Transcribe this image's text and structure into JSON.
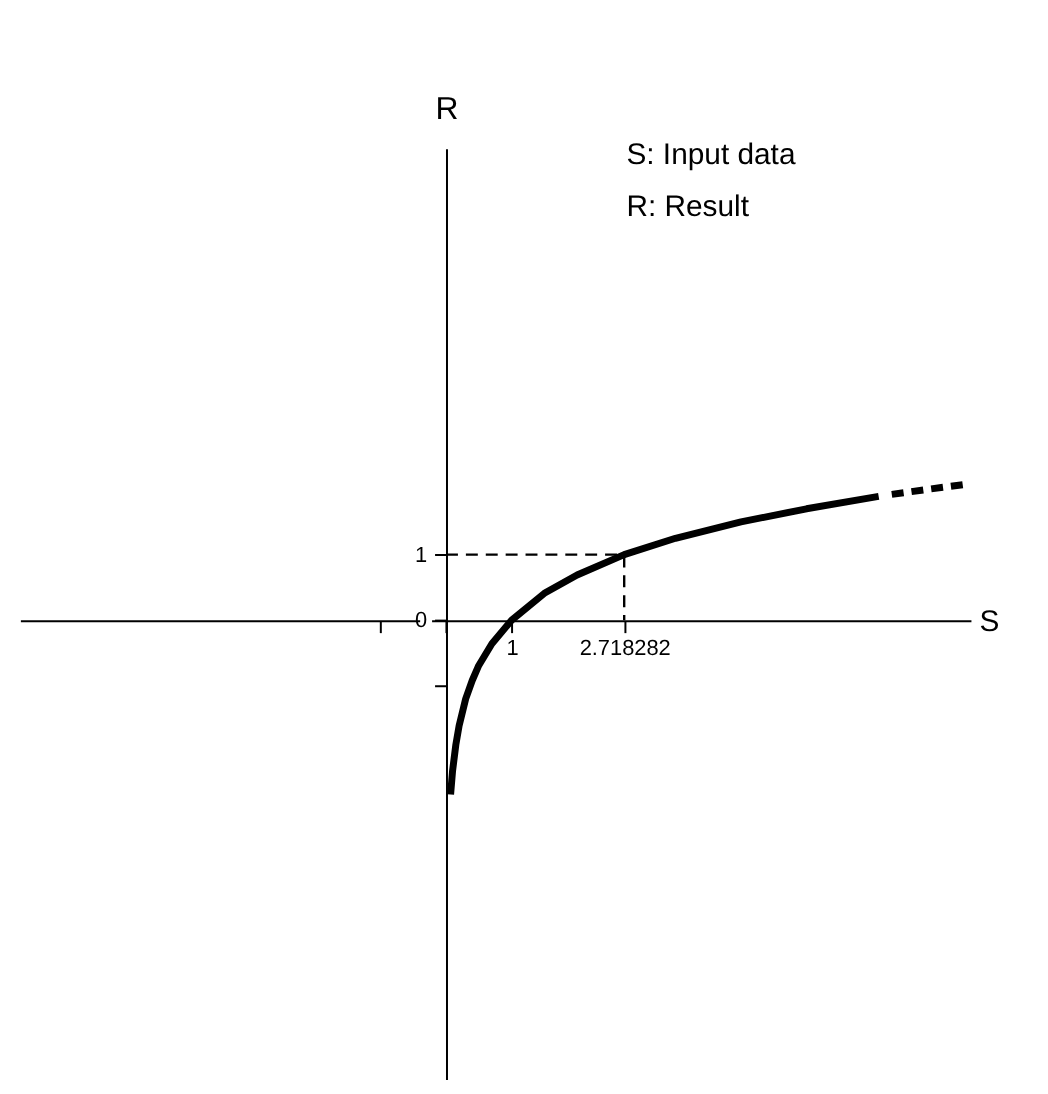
{
  "chart_data": {
    "type": "line",
    "xlabel": "S",
    "ylabel": "R",
    "annotations": [
      "S: Input data",
      "R: Result"
    ],
    "series": [
      {
        "color": "#000000",
        "line_style": "solid",
        "x": [
          0.07,
          0.1,
          0.15,
          0.2,
          0.3,
          0.4,
          0.5,
          0.7,
          1,
          1.5,
          2,
          2.718282,
          3.5,
          4.5,
          5.5,
          6.6
        ],
        "values": [
          -2.66,
          -2.3,
          -1.9,
          -1.61,
          -1.2,
          -0.92,
          -0.69,
          -0.36,
          0,
          0.41,
          0.69,
          1,
          1.25,
          1.5,
          1.7,
          1.89
        ]
      },
      {
        "color": "#000000",
        "line_style": "dashed",
        "x": [
          6.8,
          7.3,
          7.9
        ],
        "values": [
          1.92,
          1.99,
          2.07
        ]
      },
      {
        "color": "#000000",
        "line_style": "dashed",
        "x": [
          0,
          2.718282,
          2.718282
        ],
        "values": [
          1,
          1,
          0
        ]
      }
    ],
    "xlim": [
      -6.5,
      8
    ],
    "ylim": [
      -7,
      7.2
    ],
    "xticks": [
      {
        "value": -1,
        "label": null
      },
      {
        "value": 0,
        "label": null
      },
      1,
      2.718282
    ],
    "yticks": [
      1,
      0,
      {
        "value": -1,
        "label": null
      }
    ],
    "grid": false,
    "marker": "none"
  }
}
